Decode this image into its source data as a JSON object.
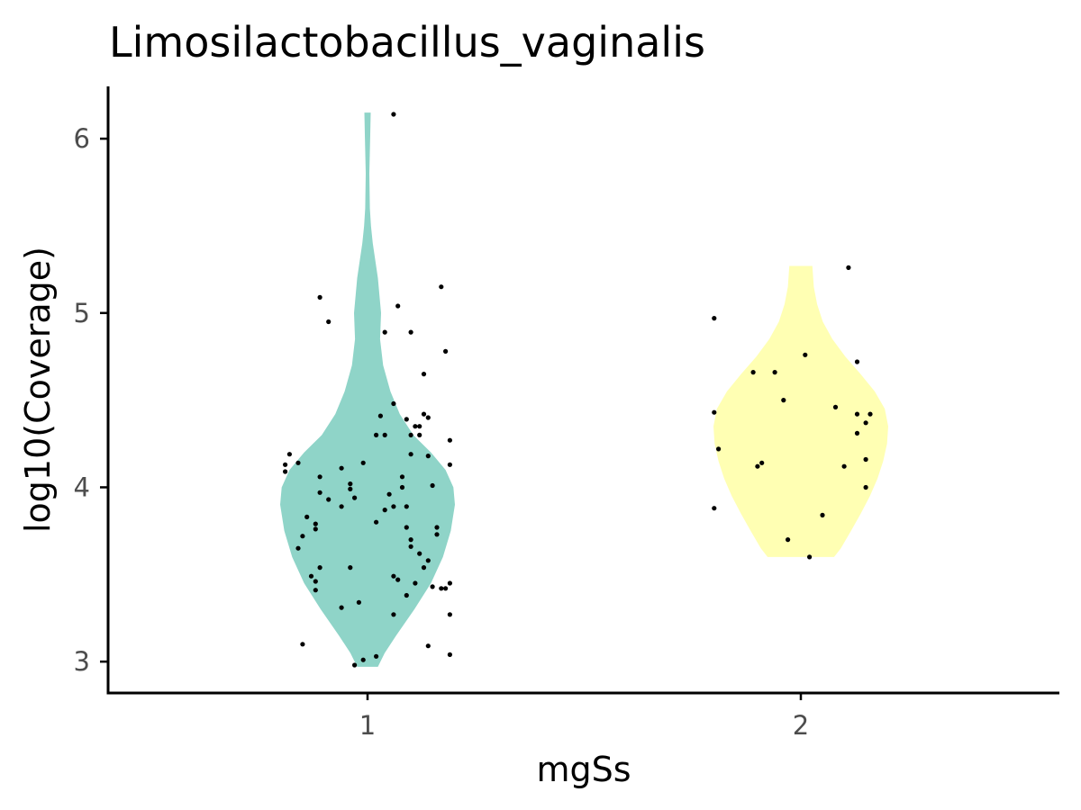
{
  "chart_data": {
    "type": "violin",
    "title": "Limosilactobacillus_vaginalis",
    "xlabel": "mgSs",
    "ylabel": "log10(Coverage)",
    "ylim": [
      2.82,
      6.3
    ],
    "yticks": [
      3,
      4,
      5,
      6
    ],
    "categories": [
      "1",
      "2"
    ],
    "grid": false,
    "legend": "none",
    "point_color": "#000000",
    "groups": [
      {
        "category": "1",
        "fill": "#8fd4c8",
        "density_profile": [
          [
            2.97,
            0.2
          ],
          [
            3.05,
            0.33
          ],
          [
            3.15,
            0.55
          ],
          [
            3.3,
            0.9
          ],
          [
            3.45,
            1.22
          ],
          [
            3.6,
            1.45
          ],
          [
            3.75,
            1.6
          ],
          [
            3.9,
            1.68
          ],
          [
            4.0,
            1.65
          ],
          [
            4.1,
            1.5
          ],
          [
            4.2,
            1.22
          ],
          [
            4.3,
            0.88
          ],
          [
            4.42,
            0.62
          ],
          [
            4.55,
            0.44
          ],
          [
            4.7,
            0.3
          ],
          [
            4.85,
            0.24
          ],
          [
            5.0,
            0.26
          ],
          [
            5.2,
            0.2
          ],
          [
            5.4,
            0.1
          ],
          [
            5.5,
            0.065
          ],
          [
            5.6,
            0.045
          ],
          [
            5.8,
            0.035
          ],
          [
            6.0,
            0.05
          ],
          [
            6.15,
            0.06
          ]
        ],
        "points": [
          [
            -0.18,
            4.19
          ],
          [
            -0.19,
            4.13
          ],
          [
            -0.19,
            4.09
          ],
          [
            -0.16,
            4.14
          ],
          [
            -0.14,
            3.83
          ],
          [
            -0.15,
            3.72
          ],
          [
            -0.16,
            3.65
          ],
          [
            -0.12,
            3.79
          ],
          [
            -0.12,
            3.76
          ],
          [
            -0.11,
            4.06
          ],
          [
            -0.11,
            3.97
          ],
          [
            -0.09,
            3.93
          ],
          [
            -0.06,
            4.11
          ],
          [
            -0.06,
            3.89
          ],
          [
            -0.04,
            4.02
          ],
          [
            -0.04,
            3.99
          ],
          [
            -0.03,
            3.94
          ],
          [
            -0.01,
            4.14
          ],
          [
            -0.11,
            3.54
          ],
          [
            -0.13,
            3.49
          ],
          [
            -0.12,
            3.46
          ],
          [
            -0.12,
            3.41
          ],
          [
            -0.06,
            3.31
          ],
          [
            -0.02,
            3.34
          ],
          [
            -0.04,
            3.54
          ],
          [
            -0.15,
            3.1
          ],
          [
            -0.03,
            2.98
          ],
          [
            -0.01,
            3.01
          ],
          [
            0.02,
            3.03
          ],
          [
            0.02,
            3.8
          ],
          [
            0.02,
            4.3
          ],
          [
            0.04,
            4.3
          ],
          [
            0.06,
            4.48
          ],
          [
            0.03,
            4.41
          ],
          [
            0.04,
            3.87
          ],
          [
            0.05,
            3.96
          ],
          [
            0.06,
            3.89
          ],
          [
            0.08,
            4.06
          ],
          [
            0.08,
            4.0
          ],
          [
            0.09,
            4.39
          ],
          [
            0.1,
            4.19
          ],
          [
            0.11,
            4.35
          ],
          [
            0.1,
            4.3
          ],
          [
            0.12,
            4.35
          ],
          [
            0.13,
            4.42
          ],
          [
            0.12,
            4.3
          ],
          [
            0.09,
            3.89
          ],
          [
            0.1,
            3.7
          ],
          [
            0.1,
            3.66
          ],
          [
            0.12,
            3.62
          ],
          [
            0.13,
            3.54
          ],
          [
            0.09,
            3.77
          ],
          [
            0.06,
            3.49
          ],
          [
            0.07,
            3.47
          ],
          [
            0.11,
            3.45
          ],
          [
            0.09,
            3.38
          ],
          [
            0.06,
            3.27
          ],
          [
            0.14,
            3.58
          ],
          [
            0.14,
            3.09
          ],
          [
            0.15,
            3.43
          ],
          [
            0.17,
            3.42
          ],
          [
            0.18,
            3.42
          ],
          [
            0.19,
            3.45
          ],
          [
            0.19,
            3.27
          ],
          [
            0.19,
            3.04
          ],
          [
            0.15,
            4.01
          ],
          [
            0.16,
            3.77
          ],
          [
            0.16,
            3.73
          ],
          [
            0.14,
            4.4
          ],
          [
            0.14,
            4.18
          ],
          [
            0.19,
            4.27
          ],
          [
            0.19,
            4.13
          ],
          [
            0.18,
            4.78
          ],
          [
            0.17,
            5.15
          ],
          [
            0.13,
            4.65
          ],
          [
            0.1,
            4.89
          ],
          [
            0.07,
            5.04
          ],
          [
            0.04,
            4.89
          ],
          [
            -0.09,
            4.95
          ],
          [
            -0.11,
            5.09
          ],
          [
            0.06,
            6.14
          ]
        ]
      },
      {
        "category": "2",
        "fill": "#ffffb3",
        "density_profile": [
          [
            3.6,
            1.18
          ],
          [
            3.65,
            1.42
          ],
          [
            3.75,
            1.78
          ],
          [
            3.85,
            2.13
          ],
          [
            3.95,
            2.45
          ],
          [
            4.05,
            2.72
          ],
          [
            4.15,
            2.92
          ],
          [
            4.25,
            3.06
          ],
          [
            4.35,
            3.1
          ],
          [
            4.45,
            2.98
          ],
          [
            4.55,
            2.62
          ],
          [
            4.65,
            2.12
          ],
          [
            4.75,
            1.58
          ],
          [
            4.85,
            1.12
          ],
          [
            4.95,
            0.78
          ],
          [
            5.05,
            0.58
          ],
          [
            5.15,
            0.46
          ],
          [
            5.27,
            0.41
          ]
        ],
        "points": [
          [
            -0.2,
            4.97
          ],
          [
            -0.2,
            4.43
          ],
          [
            -0.19,
            4.22
          ],
          [
            -0.2,
            3.88
          ],
          [
            -0.11,
            4.66
          ],
          [
            -0.1,
            4.12
          ],
          [
            -0.09,
            4.14
          ],
          [
            -0.06,
            4.66
          ],
          [
            -0.04,
            4.5
          ],
          [
            -0.03,
            3.7
          ],
          [
            0.02,
            3.6
          ],
          [
            0.01,
            4.76
          ],
          [
            0.05,
            3.84
          ],
          [
            0.08,
            4.46
          ],
          [
            0.1,
            4.12
          ],
          [
            0.11,
            5.26
          ],
          [
            0.13,
            4.72
          ],
          [
            0.13,
            4.42
          ],
          [
            0.13,
            4.31
          ],
          [
            0.15,
            4.37
          ],
          [
            0.16,
            4.42
          ],
          [
            0.15,
            4.16
          ],
          [
            0.15,
            4.0
          ]
        ]
      }
    ]
  }
}
